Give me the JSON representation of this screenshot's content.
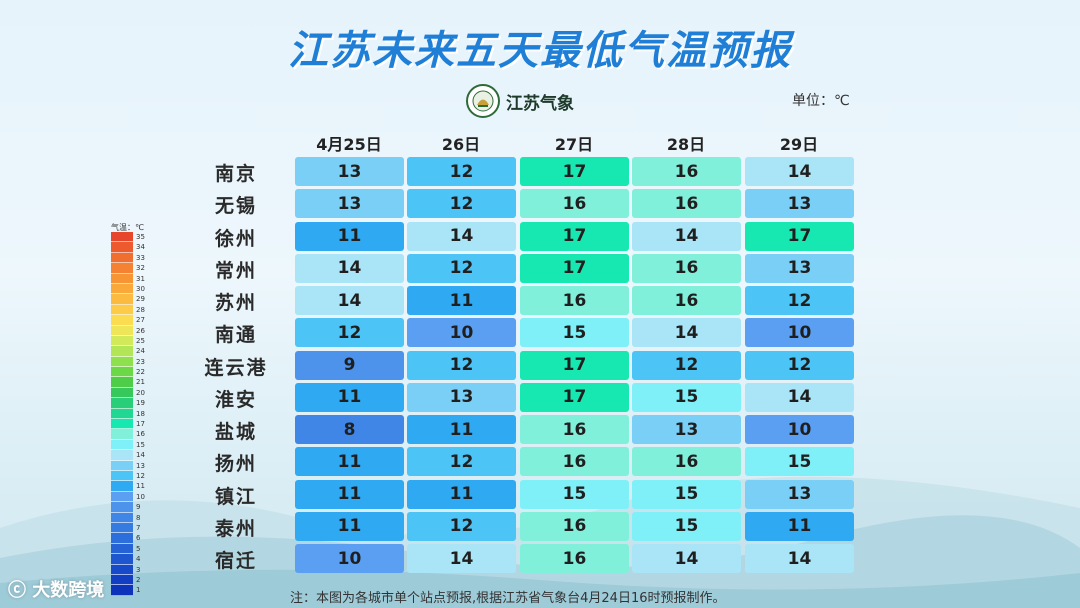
{
  "title": "江苏未来五天最低气温预报",
  "logo": {
    "text": "江苏气象",
    "icon": "jiangsu-meteorology-emblem-icon"
  },
  "unit_label": "单位：℃",
  "legend_label": "气温：℃",
  "dates": [
    "4月25日",
    "26日",
    "27日",
    "28日",
    "29日"
  ],
  "cities": [
    {
      "name": "南京",
      "temps": [
        13,
        12,
        17,
        16,
        14
      ]
    },
    {
      "name": "无锡",
      "temps": [
        13,
        12,
        16,
        16,
        13
      ]
    },
    {
      "name": "徐州",
      "temps": [
        11,
        14,
        17,
        14,
        17
      ]
    },
    {
      "name": "常州",
      "temps": [
        14,
        12,
        17,
        16,
        13
      ]
    },
    {
      "name": "苏州",
      "temps": [
        14,
        11,
        16,
        16,
        12
      ]
    },
    {
      "name": "南通",
      "temps": [
        12,
        10,
        15,
        14,
        10
      ]
    },
    {
      "name": "连云港",
      "temps": [
        9,
        12,
        17,
        12,
        12
      ]
    },
    {
      "name": "淮安",
      "temps": [
        11,
        13,
        17,
        15,
        14
      ]
    },
    {
      "name": "盐城",
      "temps": [
        8,
        11,
        16,
        13,
        10
      ]
    },
    {
      "name": "扬州",
      "temps": [
        11,
        12,
        16,
        16,
        15
      ]
    },
    {
      "name": "镇江",
      "temps": [
        11,
        11,
        15,
        15,
        13
      ]
    },
    {
      "name": "泰州",
      "temps": [
        11,
        12,
        16,
        15,
        11
      ]
    },
    {
      "name": "宿迁",
      "temps": [
        10,
        14,
        16,
        14,
        14
      ]
    }
  ],
  "temp_colors": {
    "8": "#3f86e6",
    "9": "#4d93ec",
    "10": "#5b9ff2",
    "11": "#2fa9f2",
    "12": "#4cc4f6",
    "13": "#79cff6",
    "14": "#a9e5f7",
    "15": "#7ff0f7",
    "16": "#80f0db",
    "17": "#17e8b2"
  },
  "legend_steps": [
    {
      "value": "35",
      "color": "#e8462c"
    },
    {
      "value": "34",
      "color": "#ec5a2e"
    },
    {
      "value": "33",
      "color": "#f06e30"
    },
    {
      "value": "32",
      "color": "#f48232"
    },
    {
      "value": "31",
      "color": "#f79535"
    },
    {
      "value": "30",
      "color": "#f9a83a"
    },
    {
      "value": "29",
      "color": "#fbbb40"
    },
    {
      "value": "28",
      "color": "#fccc48"
    },
    {
      "value": "27",
      "color": "#fbdc50"
    },
    {
      "value": "26",
      "color": "#eee658"
    },
    {
      "value": "25",
      "color": "#d2ea5a"
    },
    {
      "value": "24",
      "color": "#b2e656"
    },
    {
      "value": "23",
      "color": "#8ee04e"
    },
    {
      "value": "22",
      "color": "#6cd848"
    },
    {
      "value": "21",
      "color": "#4ece48"
    },
    {
      "value": "20",
      "color": "#36c85a"
    },
    {
      "value": "19",
      "color": "#28ce78"
    },
    {
      "value": "18",
      "color": "#20d894"
    },
    {
      "value": "17",
      "color": "#17e8b2"
    },
    {
      "value": "16",
      "color": "#80f0db"
    },
    {
      "value": "15",
      "color": "#7ff0f7"
    },
    {
      "value": "14",
      "color": "#a9e5f7"
    },
    {
      "value": "13",
      "color": "#79cff6"
    },
    {
      "value": "12",
      "color": "#4cc4f6"
    },
    {
      "value": "11",
      "color": "#2fa9f2"
    },
    {
      "value": "10",
      "color": "#5b9ff2"
    },
    {
      "value": "9",
      "color": "#4d93ec"
    },
    {
      "value": "8",
      "color": "#3f86e6"
    },
    {
      "value": "7",
      "color": "#357be0"
    },
    {
      "value": "6",
      "color": "#2c6edb"
    },
    {
      "value": "5",
      "color": "#2462d5"
    },
    {
      "value": "4",
      "color": "#1d56cf"
    },
    {
      "value": "3",
      "color": "#174ac9"
    },
    {
      "value": "2",
      "color": "#123fc2"
    },
    {
      "value": "1",
      "color": "#0e33bb"
    }
  ],
  "note": "注：本图为各城市单个站点预报,根据江苏省气象台4月24日16时预报制作。",
  "watermark": "大数跨境"
}
